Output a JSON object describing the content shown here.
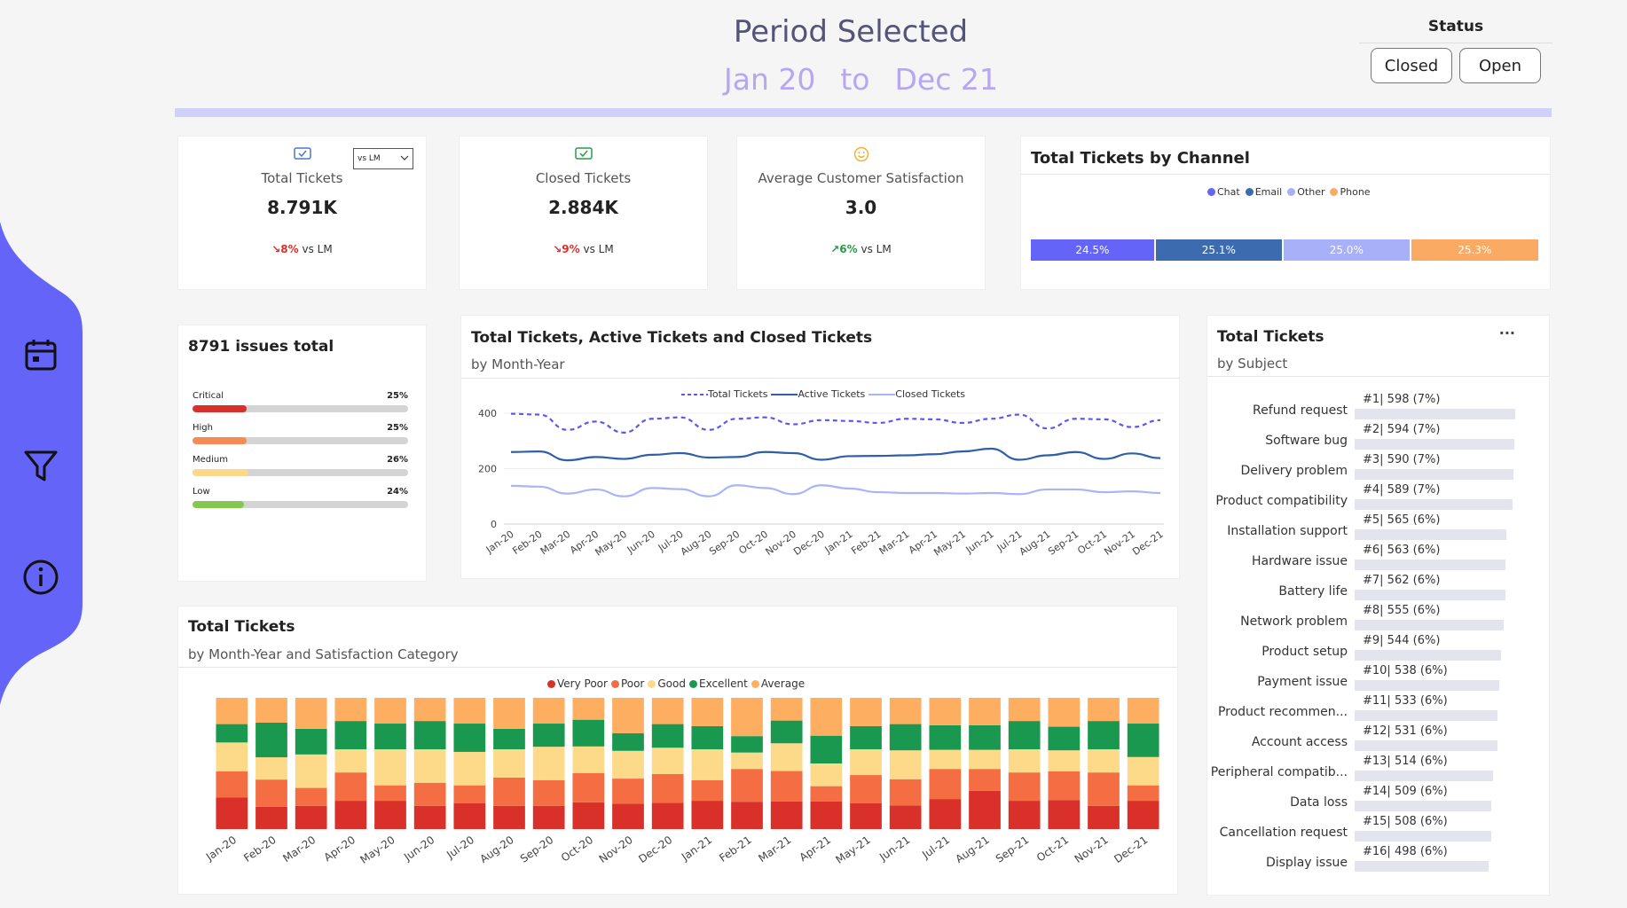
{
  "header": {
    "title": "Period Selected",
    "from": "Jan 20",
    "to_word": "to",
    "until": "Dec 21"
  },
  "status": {
    "title": "Status",
    "closed_label": "Closed",
    "open_label": "Open"
  },
  "kpis": {
    "total": {
      "label": "Total Tickets",
      "value": "8.791K",
      "delta": "↘8%",
      "suffix": "vs LM",
      "selector": "vs LM"
    },
    "closed": {
      "label": "Closed Tickets",
      "value": "2.884K",
      "delta": "↘9%",
      "suffix": "vs LM"
    },
    "satisfaction": {
      "label": "Average Customer Satisfaction",
      "value": "3.0",
      "delta": "↗6%",
      "suffix": "vs LM"
    }
  },
  "channel": {
    "title": "Total Tickets by Channel",
    "legend": [
      "Chat",
      "Email",
      "Other",
      "Phone"
    ],
    "segments": [
      {
        "name": "Chat",
        "label": "24.5%",
        "value": 24.5,
        "color": "#6464f8"
      },
      {
        "name": "Email",
        "label": "25.1%",
        "value": 25.1,
        "color": "#3c6bb0"
      },
      {
        "name": "Other",
        "label": "25.0%",
        "value": 25.0,
        "color": "#a8b0f8"
      },
      {
        "name": "Phone",
        "label": "25.3%",
        "value": 25.3,
        "color": "#fbaa63"
      }
    ]
  },
  "priority": {
    "title": "8791 issues total",
    "items": [
      {
        "label": "Critical",
        "pct": "25%",
        "value": 25,
        "color": "#d9312a"
      },
      {
        "label": "High",
        "pct": "25%",
        "value": 25,
        "color": "#f58a55"
      },
      {
        "label": "Medium",
        "pct": "26%",
        "value": 26,
        "color": "#fbd88a"
      },
      {
        "label": "Low",
        "pct": "24%",
        "value": 24,
        "color": "#84c94f"
      }
    ]
  },
  "trend": {
    "title": "Total Tickets, Active Tickets and Closed Tickets",
    "subtitle": "by Month-Year",
    "legend": [
      "Total Tickets",
      "Active Tickets",
      "Closed Tickets"
    ]
  },
  "subjects": {
    "title": "Total Tickets",
    "subtitle": "by Subject",
    "more": "···",
    "items": [
      {
        "name": "Refund request",
        "label": "#1| 598 (7%)",
        "value": 598
      },
      {
        "name": "Software bug",
        "label": "#2| 594 (7%)",
        "value": 594
      },
      {
        "name": "Delivery problem",
        "label": "#3| 590 (7%)",
        "value": 590
      },
      {
        "name": "Product compatibility",
        "label": "#4| 589 (7%)",
        "value": 589
      },
      {
        "name": "Installation support",
        "label": "#5| 565 (6%)",
        "value": 565
      },
      {
        "name": "Hardware issue",
        "label": "#6| 563 (6%)",
        "value": 563
      },
      {
        "name": "Battery life",
        "label": "#7| 562 (6%)",
        "value": 562
      },
      {
        "name": "Network problem",
        "label": "#8| 555 (6%)",
        "value": 555
      },
      {
        "name": "Product setup",
        "label": "#9| 544 (6%)",
        "value": 544
      },
      {
        "name": "Payment issue",
        "label": "#10| 538 (6%)",
        "value": 538
      },
      {
        "name": "Product recommen...",
        "label": "#11| 533 (6%)",
        "value": 533
      },
      {
        "name": "Account access",
        "label": "#12| 531 (6%)",
        "value": 531
      },
      {
        "name": "Peripheral compatib...",
        "label": "#13| 514 (6%)",
        "value": 514
      },
      {
        "name": "Data loss",
        "label": "#14| 509 (6%)",
        "value": 509
      },
      {
        "name": "Cancellation request",
        "label": "#15| 508 (6%)",
        "value": 508
      },
      {
        "name": "Display issue",
        "label": "#16| 498 (6%)",
        "value": 498
      }
    ]
  },
  "satisfaction_chart": {
    "title": "Total Tickets",
    "subtitle": "by Month-Year and Satisfaction Category",
    "legend": [
      "Very Poor",
      "Poor",
      "Good",
      "Excellent",
      "Average"
    ]
  },
  "chart_data": [
    {
      "type": "line",
      "title": "Total Tickets, Active Tickets and Closed Tickets",
      "categories": [
        "Jan-20",
        "Feb-20",
        "Mar-20",
        "Apr-20",
        "May-20",
        "Jun-20",
        "Jul-20",
        "Aug-20",
        "Sep-20",
        "Oct-20",
        "Nov-20",
        "Dec-20",
        "Jan-21",
        "Feb-21",
        "Mar-21",
        "Apr-21",
        "May-21",
        "Jun-21",
        "Jul-21",
        "Aug-21",
        "Sep-21",
        "Oct-21",
        "Nov-21",
        "Dec-21"
      ],
      "ylim": [
        0,
        400
      ],
      "yticks": [
        0,
        200,
        400
      ],
      "series": [
        {
          "name": "Total Tickets",
          "color": "#5a5af0",
          "dash": true,
          "values": [
            398,
            395,
            340,
            370,
            330,
            380,
            385,
            340,
            380,
            385,
            360,
            375,
            372,
            365,
            380,
            378,
            365,
            380,
            395,
            345,
            380,
            378,
            350,
            375
          ]
        },
        {
          "name": "Active Tickets",
          "color": "#2f5fa8",
          "dash": false,
          "values": [
            260,
            262,
            230,
            242,
            235,
            250,
            256,
            240,
            242,
            260,
            256,
            232,
            245,
            246,
            248,
            252,
            262,
            272,
            232,
            248,
            260,
            235,
            255,
            238
          ]
        },
        {
          "name": "Closed Tickets",
          "color": "#a8b6f8",
          "dash": false,
          "values": [
            138,
            135,
            110,
            125,
            100,
            130,
            126,
            100,
            140,
            130,
            108,
            140,
            128,
            115,
            112,
            112,
            110,
            112,
            108,
            125,
            125,
            115,
            118,
            112
          ]
        }
      ]
    },
    {
      "type": "bar",
      "stacked": true,
      "title": "Total Tickets by Month-Year and Satisfaction Category",
      "categories": [
        "Jan-20",
        "Feb-20",
        "Mar-20",
        "Apr-20",
        "May-20",
        "Jun-20",
        "Jul-20",
        "Aug-20",
        "Sep-20",
        "Oct-20",
        "Nov-20",
        "Dec-20",
        "Jan-21",
        "Feb-21",
        "Mar-21",
        "Apr-21",
        "May-21",
        "Jun-21",
        "Jul-21",
        "Aug-21",
        "Sep-21",
        "Oct-21",
        "Nov-21",
        "Dec-21"
      ],
      "series": [
        {
          "name": "Very Poor",
          "color": "#d9312a",
          "values": [
            24,
            18,
            18,
            22,
            22,
            18,
            20,
            18,
            18,
            22,
            20,
            20,
            22,
            20,
            22,
            22,
            20,
            18,
            22,
            28,
            22,
            22,
            18,
            22
          ]
        },
        {
          "name": "Poor",
          "color": "#f46d43",
          "values": [
            20,
            22,
            14,
            22,
            12,
            18,
            14,
            22,
            20,
            24,
            20,
            22,
            16,
            24,
            24,
            12,
            22,
            20,
            22,
            16,
            22,
            22,
            26,
            12
          ]
        },
        {
          "name": "Good",
          "color": "#fdd98a",
          "values": [
            22,
            18,
            26,
            18,
            28,
            26,
            26,
            22,
            26,
            22,
            22,
            20,
            24,
            12,
            22,
            18,
            20,
            22,
            14,
            14,
            18,
            16,
            18,
            22
          ]
        },
        {
          "name": "Excellent",
          "color": "#1a9850",
          "values": [
            14,
            28,
            20,
            22,
            20,
            22,
            22,
            16,
            18,
            22,
            14,
            18,
            18,
            12,
            18,
            22,
            18,
            20,
            18,
            18,
            22,
            18,
            22,
            26
          ]
        },
        {
          "name": "Average",
          "color": "#fdae61",
          "values": [
            20,
            20,
            24,
            18,
            20,
            18,
            20,
            24,
            20,
            18,
            28,
            20,
            22,
            28,
            18,
            30,
            22,
            20,
            20,
            20,
            18,
            22,
            18,
            20
          ]
        }
      ]
    },
    {
      "type": "bar",
      "orientation": "horizontal",
      "title": "Total Tickets by Subject",
      "categories": [
        "Refund request",
        "Software bug",
        "Delivery problem",
        "Product compatibility",
        "Installation support",
        "Hardware issue",
        "Battery life",
        "Network problem",
        "Product setup",
        "Payment issue",
        "Product recommen...",
        "Account access",
        "Peripheral compatib...",
        "Data loss",
        "Cancellation request",
        "Display issue"
      ],
      "values": [
        598,
        594,
        590,
        589,
        565,
        563,
        562,
        555,
        544,
        538,
        533,
        531,
        514,
        509,
        508,
        498
      ]
    }
  ]
}
